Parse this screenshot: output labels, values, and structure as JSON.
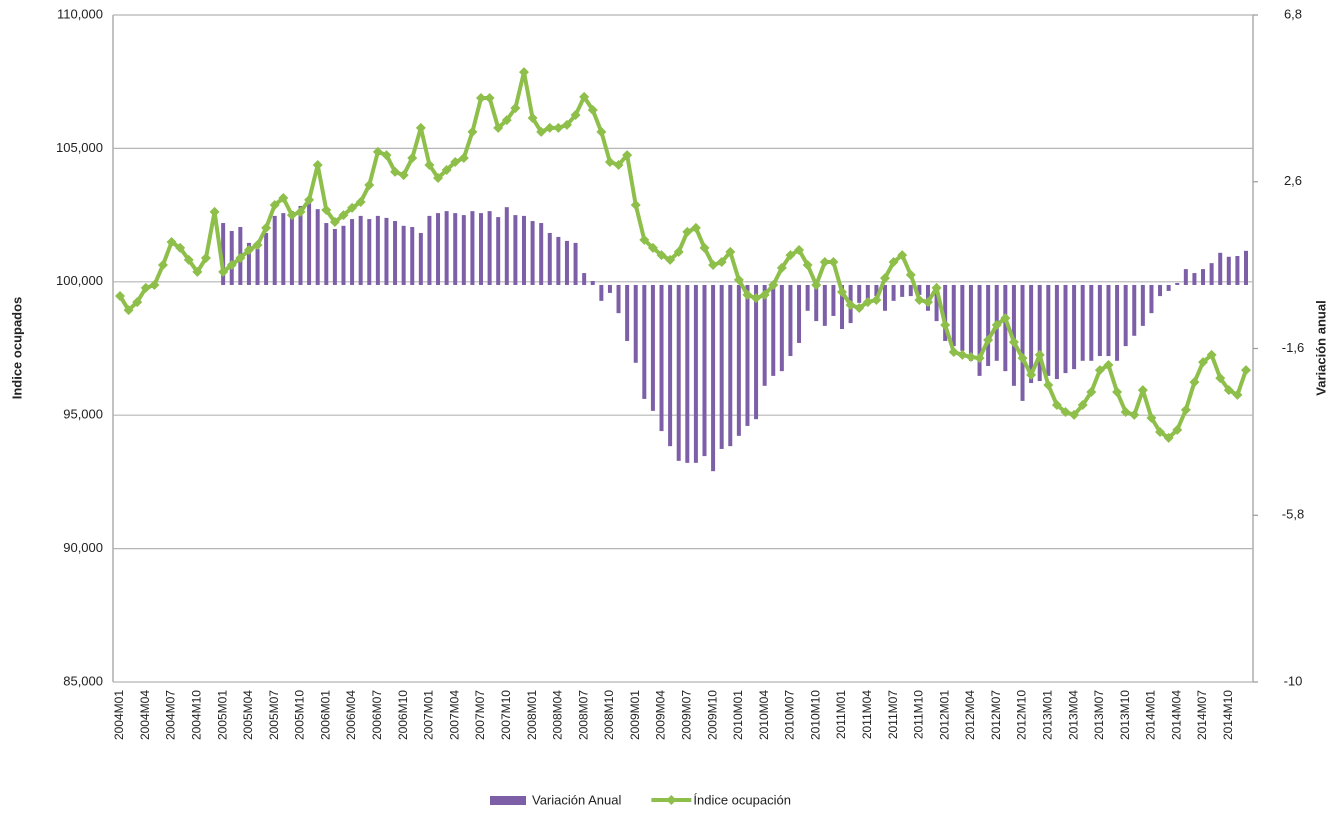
{
  "chart_data": {
    "type": "combo",
    "y_label": "Indice ocupados",
    "y2_label": "Variación anual",
    "categories": [
      "2004M01",
      null,
      null,
      "2004M04",
      null,
      null,
      "2004M07",
      null,
      null,
      "2004M10",
      null,
      null,
      "2005M01",
      null,
      null,
      "2005M04",
      null,
      null,
      "2005M07",
      null,
      null,
      "2005M10",
      null,
      null,
      "2006M01",
      null,
      null,
      "2006M04",
      null,
      null,
      "2006M07",
      null,
      null,
      "2006M10",
      null,
      null,
      "2007M01",
      null,
      null,
      "2007M04",
      null,
      null,
      "2007M07",
      null,
      null,
      "2007M10",
      null,
      null,
      "2008M01",
      null,
      null,
      "2008M04",
      null,
      null,
      "2008M07",
      null,
      null,
      "2008M10",
      null,
      null,
      "2009M01",
      null,
      null,
      "2009M04",
      null,
      null,
      "2009M07",
      null,
      null,
      "2009M10",
      null,
      null,
      "2010M01",
      null,
      null,
      "2010M04",
      null,
      null,
      "2010M07",
      null,
      null,
      "2010M10",
      null,
      null,
      "2011M01",
      null,
      null,
      "2011M04",
      null,
      null,
      "2011M07",
      null,
      null,
      "2011M10",
      null,
      null,
      "2012M01",
      null,
      null,
      "2012M04",
      null,
      null,
      "2012M07",
      null,
      null,
      "2012M10",
      null,
      null,
      "2013M01",
      null,
      null,
      "2013M04",
      null,
      null,
      "2013M07",
      null,
      null,
      "2013M10",
      null,
      null,
      "2014M01",
      null,
      null,
      "2014M04",
      null,
      null,
      "2014M07",
      null,
      null,
      "2014M10",
      null,
      null
    ],
    "series": [
      {
        "name": "Variación Anual",
        "type": "bar",
        "axis": "y2",
        "color": "#7d5fa8",
        "values": [
          null,
          null,
          null,
          null,
          null,
          null,
          null,
          null,
          null,
          null,
          null,
          null,
          1.56,
          1.36,
          1.46,
          1.06,
          0.91,
          1.31,
          1.74,
          1.81,
          1.86,
          1.99,
          2.17,
          1.91,
          1.56,
          1.41,
          1.49,
          1.66,
          1.74,
          1.66,
          1.74,
          1.69,
          1.61,
          1.49,
          1.46,
          1.31,
          1.74,
          1.81,
          1.86,
          1.81,
          1.76,
          1.86,
          1.81,
          1.86,
          1.71,
          1.96,
          1.76,
          1.74,
          1.61,
          1.56,
          1.31,
          1.21,
          1.11,
          1.06,
          0.3,
          0.1,
          -0.4,
          -0.2,
          -0.71,
          -1.41,
          -1.96,
          -2.87,
          -3.17,
          -3.68,
          -4.06,
          -4.43,
          -4.48,
          -4.48,
          -4.31,
          -4.69,
          -4.13,
          -4.06,
          -3.8,
          -3.55,
          -3.38,
          -2.54,
          -2.29,
          -2.17,
          -1.79,
          -1.46,
          -0.65,
          -0.91,
          -1.03,
          -0.78,
          -1.11,
          -0.96,
          -0.45,
          -0.35,
          -0.28,
          -0.65,
          -0.4,
          -0.3,
          -0.28,
          -0.25,
          -0.65,
          -0.91,
          -1.41,
          -1.54,
          -1.66,
          -1.91,
          -2.29,
          -2.04,
          -1.91,
          -2.17,
          -2.54,
          -2.92,
          -2.47,
          -2.42,
          -2.29,
          -2.37,
          -2.22,
          -2.12,
          -1.91,
          -1.91,
          -1.79,
          -1.79,
          -1.91,
          -1.54,
          -1.28,
          -1.03,
          -0.71,
          -0.28,
          -0.15,
          0.05,
          0.4,
          0.3,
          0.4,
          0.55,
          0.81,
          0.71,
          0.73,
          0.86
        ]
      },
      {
        "name": "Índice ocupación",
        "type": "line",
        "axis": "y",
        "color": "#8dbf4a",
        "values": [
          99470,
          98940,
          99240,
          99770,
          99880,
          100630,
          101490,
          101270,
          100820,
          100370,
          100890,
          102620,
          100370,
          100630,
          100890,
          101190,
          101380,
          102020,
          102880,
          103140,
          102500,
          102620,
          103070,
          104380,
          102690,
          102240,
          102500,
          102770,
          102990,
          103630,
          104870,
          104750,
          104120,
          104000,
          104640,
          105770,
          104380,
          103890,
          104190,
          104490,
          104640,
          105620,
          106890,
          106890,
          105770,
          106060,
          106510,
          107860,
          106140,
          105620,
          105770,
          105770,
          105880,
          106250,
          106930,
          106440,
          105620,
          104490,
          104380,
          104750,
          102880,
          101570,
          101270,
          101000,
          100820,
          101120,
          101870,
          102020,
          101270,
          100630,
          100740,
          101120,
          100070,
          99510,
          99390,
          99510,
          99880,
          100520,
          101000,
          101190,
          100630,
          99880,
          100740,
          100740,
          99620,
          99130,
          99020,
          99240,
          99320,
          100140,
          100740,
          101000,
          100260,
          99320,
          99240,
          99770,
          98380,
          97370,
          97260,
          97180,
          97140,
          97820,
          98380,
          98640,
          97740,
          97140,
          96510,
          97260,
          96130,
          95380,
          95120,
          95010,
          95380,
          95870,
          96690,
          96880,
          95870,
          95120,
          95010,
          95940,
          94900,
          94370,
          94150,
          94450,
          95200,
          96240,
          96990,
          97260,
          96390,
          95940,
          95760,
          96690
        ]
      }
    ],
    "ylim": [
      85000,
      110000
    ],
    "yticks": [
      {
        "value": 85000,
        "label": "85,000"
      },
      {
        "value": 90000,
        "label": "90,000"
      },
      {
        "value": 95000,
        "label": "95,000"
      },
      {
        "value": 100000,
        "label": "100,000"
      },
      {
        "value": 105000,
        "label": "105,000"
      },
      {
        "value": 110000,
        "label": "110,000"
      }
    ],
    "y2lim": [
      -10,
      6.8
    ],
    "y2ticks": [
      -10,
      {
        "value": -5.8,
        "label": "-5,8"
      },
      {
        "value": -1.6,
        "label": "-1,6"
      },
      {
        "value": 2.6,
        "label": "2,6"
      },
      {
        "value": 6.8,
        "label": "6,8"
      }
    ],
    "grid": true
  }
}
